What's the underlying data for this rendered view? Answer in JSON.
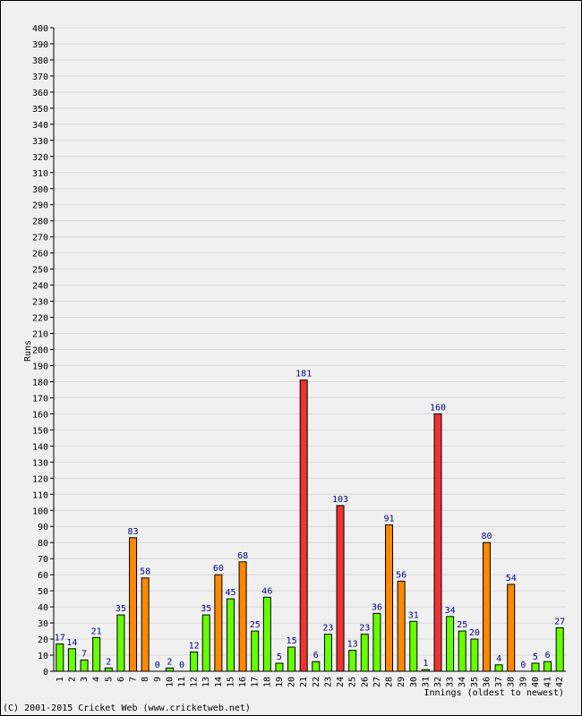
{
  "chart_data": {
    "type": "bar",
    "ylabel": "Runs",
    "xlabel": "Innings (oldest to newest)",
    "ylim": [
      0,
      400
    ],
    "ytick_step": 10,
    "grid": true,
    "categories": [
      "1",
      "2",
      "3",
      "4",
      "5",
      "6",
      "7",
      "8",
      "9",
      "10",
      "11",
      "12",
      "13",
      "14",
      "15",
      "16",
      "17",
      "18",
      "19",
      "20",
      "21",
      "22",
      "23",
      "24",
      "25",
      "26",
      "27",
      "28",
      "29",
      "30",
      "31",
      "32",
      "33",
      "34",
      "35",
      "36",
      "37",
      "38",
      "39",
      "40",
      "41",
      "42"
    ],
    "values": [
      17,
      14,
      7,
      21,
      2,
      35,
      83,
      58,
      0,
      2,
      0,
      12,
      35,
      60,
      45,
      68,
      25,
      46,
      5,
      15,
      181,
      6,
      23,
      103,
      13,
      23,
      36,
      91,
      56,
      31,
      1,
      160,
      34,
      25,
      20,
      80,
      4,
      54,
      0,
      5,
      6,
      27
    ],
    "color_rule": {
      "under_50": "#66ff00",
      "50_to_99": "#ff8800",
      "100_plus": "#ee3333"
    }
  },
  "footer": {
    "copyright": "(C) 2001-2015 Cricket Web (www.cricketweb.net)"
  }
}
